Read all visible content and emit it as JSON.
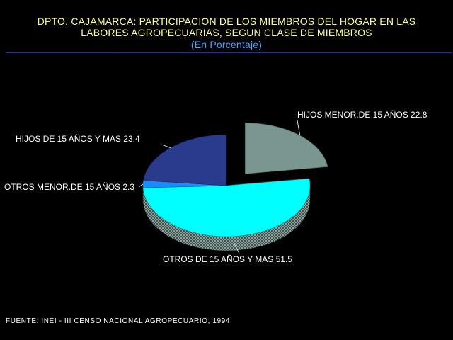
{
  "header": {
    "title_line1": "DPTO. CAJAMARCA: PARTICIPACION DE LOS MIEMBROS DEL HOGAR EN LAS",
    "title_line2": "LABORES AGROPECUARIAS, SEGUN CLASE DE MIEMBROS",
    "subtitle": "(En Porcentaje)"
  },
  "footer": {
    "source": "FUENTE: INEI - III CENSO NACIONAL AGROPECUARIO, 1994."
  },
  "chart_data": {
    "type": "pie",
    "title": "DPTO. CAJAMARCA: PARTICIPACION DE LOS MIEMBROS DEL HOGAR EN LAS LABORES AGROPECUARIAS, SEGUN CLASE DE MIEMBROS",
    "subtitle": "(En Porcentaje)",
    "slices": [
      {
        "label": "HIJOS MENOR.DE 15 AÑOS",
        "value": 22.8,
        "color": "#7a9690",
        "exploded": true
      },
      {
        "label": "OTROS DE 15 AÑOS Y MAS",
        "value": 51.5,
        "color": "#00ffff"
      },
      {
        "label": "OTROS MENOR.DE 15 AÑOS",
        "value": 2.3,
        "color": "#1a8cff"
      },
      {
        "label": "HIJOS DE 15 AÑOS Y MAS",
        "value": 23.4,
        "color": "#2a3a8c"
      }
    ],
    "unit": "%"
  }
}
